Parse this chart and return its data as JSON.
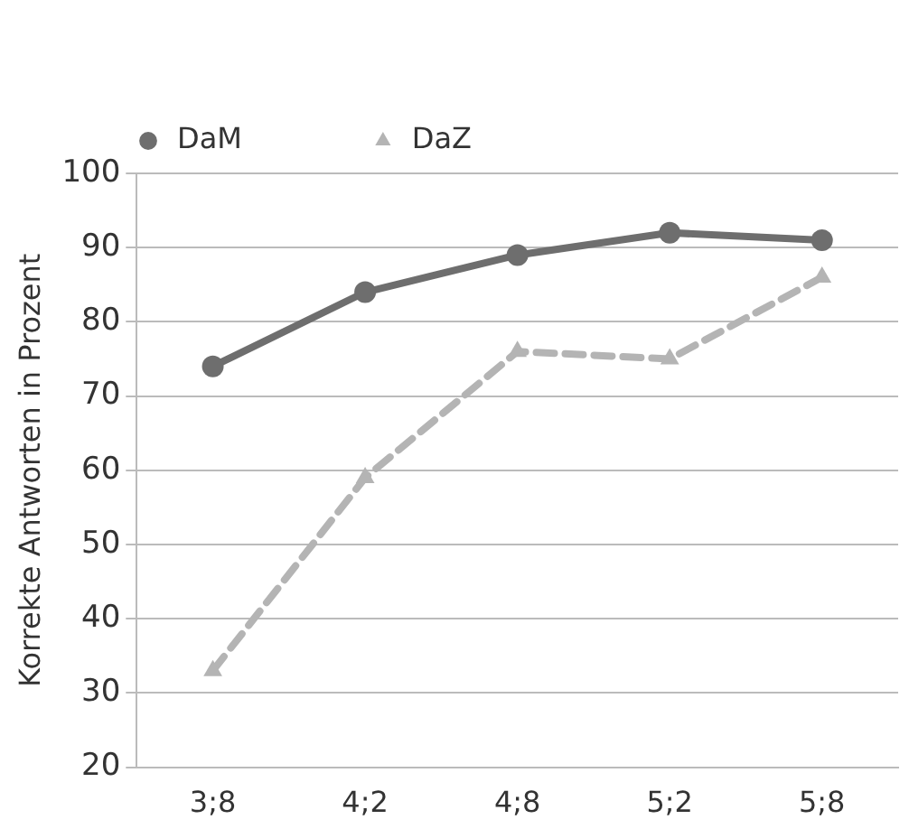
{
  "chart_data": {
    "type": "line",
    "ylabel": "Korrekte Antworten in Prozent",
    "categories": [
      "3;8",
      "4;2",
      "4;8",
      "5;2",
      "5;8"
    ],
    "series": [
      {
        "name": "DaM",
        "color": "#6e6e6e",
        "values": [
          74,
          84,
          89,
          92,
          91
        ],
        "marker": "circle",
        "line_style": "solid"
      },
      {
        "name": "DaZ",
        "color": "#b4b4b4",
        "values": [
          33,
          59,
          76,
          75,
          86
        ],
        "marker": "triangle",
        "line_style": "dashed"
      }
    ],
    "ylim": [
      20,
      100
    ],
    "yticks": [
      20,
      30,
      40,
      50,
      60,
      70,
      80,
      90,
      100
    ],
    "grid": "y",
    "legend": "top left"
  }
}
